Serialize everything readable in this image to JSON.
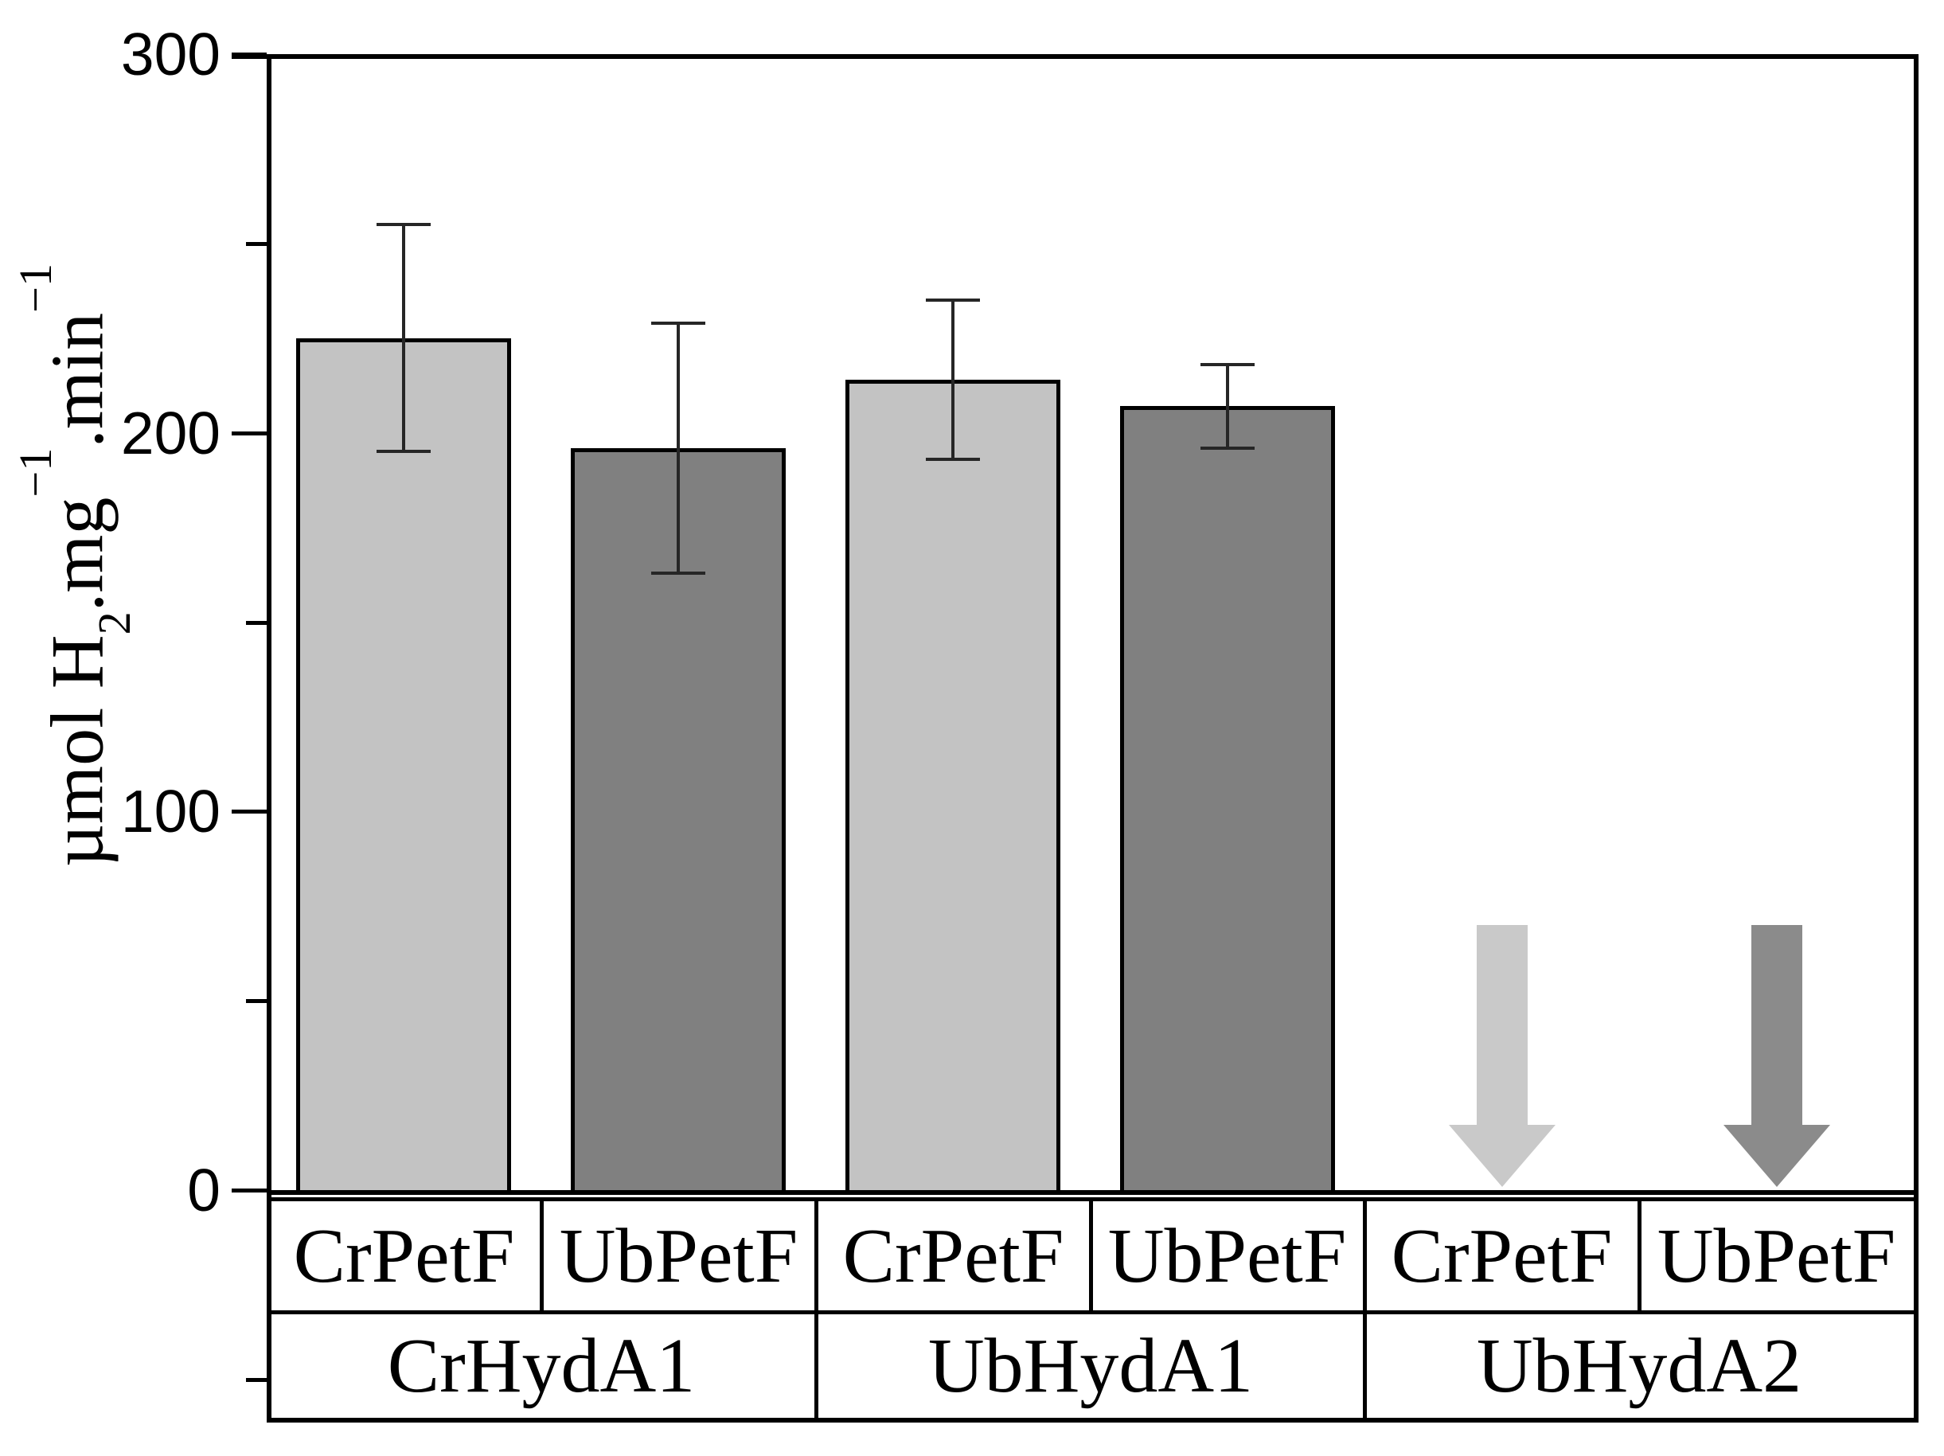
{
  "chart_data": {
    "type": "bar",
    "title": "",
    "xlabel": "",
    "ylabel": "µmol H2.mg−1.min−1",
    "ylabel_parts": {
      "prefix": "µmol H",
      "sub": "2",
      "seg2": ".mg",
      "sup2": "−1",
      "seg3": ".min",
      "sup3": "−1"
    },
    "ylim": [
      0,
      300
    ],
    "yticks_major": [
      0,
      100,
      200,
      300
    ],
    "yticks_minor": [
      -50,
      50,
      150,
      250
    ],
    "grid": false,
    "legend": false,
    "groups": [
      {
        "label": "CrHydA1",
        "bars": [
          {
            "label": "CrPetF",
            "value": 225,
            "error": 30,
            "style": "light"
          },
          {
            "label": "UbPetF",
            "value": 196,
            "error": 33,
            "style": "dark"
          }
        ]
      },
      {
        "label": "UbHydA1",
        "bars": [
          {
            "label": "CrPetF",
            "value": 214,
            "error": 21,
            "style": "light"
          },
          {
            "label": "UbPetF",
            "value": 207,
            "error": 11,
            "style": "dark"
          }
        ]
      },
      {
        "label": "UbHydA2",
        "bars": [
          {
            "label": "CrPetF",
            "value": null,
            "error": null,
            "style": "light",
            "marker": "down-arrow"
          },
          {
            "label": "UbPetF",
            "value": null,
            "error": null,
            "style": "dark",
            "marker": "down-arrow"
          }
        ]
      }
    ],
    "arrow_top_value": 70,
    "colors": {
      "light": "#c3c3c3",
      "dark": "#808080",
      "arrow_light": "#c9c9c9",
      "arrow_dark": "#8b8b8b",
      "axis": "#000000",
      "error_bar": "#262626",
      "background": "#ffffff"
    }
  }
}
